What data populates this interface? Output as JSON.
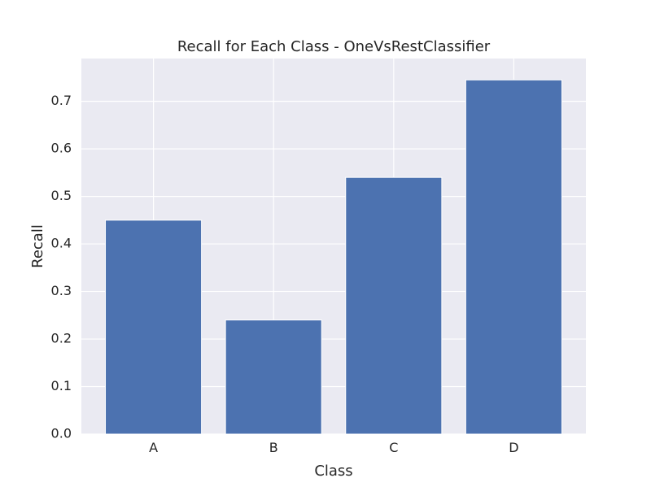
{
  "chart_data": {
    "type": "bar",
    "title": "Recall for Each Class - OneVsRestClassifier",
    "xlabel": "Class",
    "ylabel": "Recall",
    "categories": [
      "A",
      "B",
      "C",
      "D"
    ],
    "values": [
      0.45,
      0.24,
      0.54,
      0.745
    ],
    "ylim": [
      0,
      0.79
    ],
    "yticks": [
      "0.0",
      "0.1",
      "0.2",
      "0.3",
      "0.4",
      "0.5",
      "0.6",
      "0.7"
    ],
    "grid": true,
    "legend": "none",
    "colors": {
      "bar": "#4c72b0",
      "plot_background": "#eaeaf2",
      "grid": "#ffffff",
      "text": "#262626"
    }
  }
}
